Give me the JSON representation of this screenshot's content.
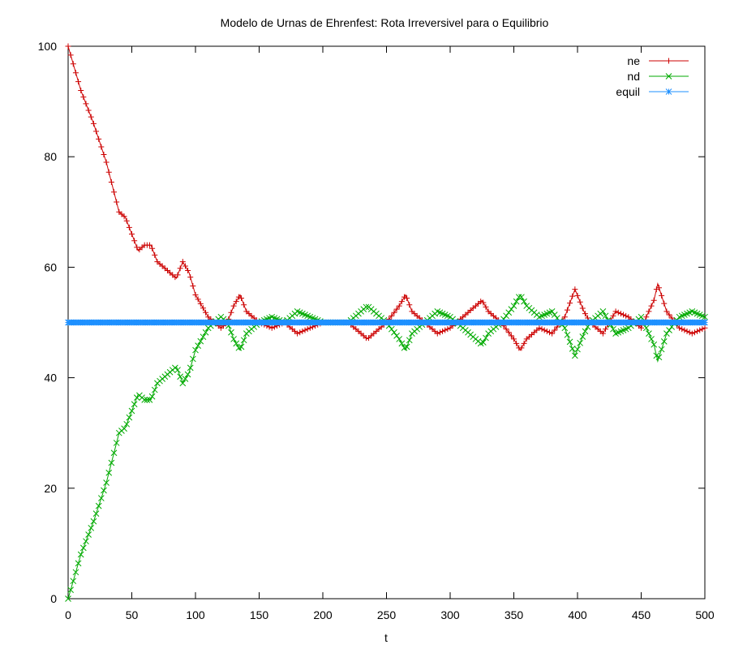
{
  "chart_data": {
    "type": "line",
    "title": "Modelo de Urnas de Ehrenfest: Rota Irreversivel para o Equilibrio",
    "xlabel": "t",
    "ylabel": "",
    "xlim": [
      0,
      500
    ],
    "ylim": [
      0,
      100
    ],
    "xticks": [
      0,
      50,
      100,
      150,
      200,
      250,
      300,
      350,
      400,
      450,
      500
    ],
    "yticks": [
      0,
      20,
      40,
      60,
      80,
      100
    ],
    "grid": false,
    "legend_position": "top-right",
    "series": [
      {
        "name": "ne",
        "color": "#cc0000",
        "marker": "plus",
        "points": [
          [
            0,
            100
          ],
          [
            10,
            92
          ],
          [
            20,
            86
          ],
          [
            30,
            79
          ],
          [
            40,
            70
          ],
          [
            45,
            69
          ],
          [
            50,
            66
          ],
          [
            55,
            63
          ],
          [
            60,
            64
          ],
          [
            65,
            64
          ],
          [
            70,
            61
          ],
          [
            75,
            60
          ],
          [
            80,
            59
          ],
          [
            85,
            58
          ],
          [
            90,
            61
          ],
          [
            95,
            59
          ],
          [
            100,
            55
          ],
          [
            105,
            53
          ],
          [
            110,
            51
          ],
          [
            115,
            50
          ],
          [
            120,
            49
          ],
          [
            125,
            50
          ],
          [
            130,
            53
          ],
          [
            135,
            55
          ],
          [
            140,
            52
          ],
          [
            145,
            51
          ],
          [
            150,
            50
          ],
          [
            160,
            49
          ],
          [
            170,
            50
          ],
          [
            180,
            48
          ],
          [
            190,
            49
          ],
          [
            200,
            50
          ],
          [
            210,
            50
          ],
          [
            220,
            50
          ],
          [
            230,
            48
          ],
          [
            235,
            47
          ],
          [
            240,
            48
          ],
          [
            250,
            50
          ],
          [
            260,
            53
          ],
          [
            265,
            55
          ],
          [
            270,
            52
          ],
          [
            280,
            50
          ],
          [
            290,
            48
          ],
          [
            300,
            49
          ],
          [
            310,
            51
          ],
          [
            320,
            53
          ],
          [
            325,
            54
          ],
          [
            330,
            52
          ],
          [
            340,
            50
          ],
          [
            350,
            47
          ],
          [
            355,
            45
          ],
          [
            360,
            47
          ],
          [
            370,
            49
          ],
          [
            380,
            48
          ],
          [
            390,
            51
          ],
          [
            398,
            56
          ],
          [
            405,
            52
          ],
          [
            410,
            50
          ],
          [
            420,
            48
          ],
          [
            425,
            50
          ],
          [
            430,
            52
          ],
          [
            440,
            51
          ],
          [
            450,
            49
          ],
          [
            460,
            54
          ],
          [
            463,
            57
          ],
          [
            470,
            52
          ],
          [
            480,
            49
          ],
          [
            490,
            48
          ],
          [
            500,
            49
          ]
        ]
      },
      {
        "name": "nd",
        "color": "#00aa00",
        "marker": "cross",
        "points": [
          [
            0,
            0
          ],
          [
            10,
            8
          ],
          [
            20,
            14
          ],
          [
            30,
            21
          ],
          [
            40,
            30
          ],
          [
            45,
            31
          ],
          [
            50,
            34
          ],
          [
            55,
            37
          ],
          [
            60,
            36
          ],
          [
            65,
            36
          ],
          [
            70,
            39
          ],
          [
            75,
            40
          ],
          [
            80,
            41
          ],
          [
            85,
            42
          ],
          [
            90,
            39
          ],
          [
            95,
            41
          ],
          [
            100,
            45
          ],
          [
            105,
            47
          ],
          [
            110,
            49
          ],
          [
            115,
            50
          ],
          [
            120,
            51
          ],
          [
            125,
            50
          ],
          [
            130,
            47
          ],
          [
            135,
            45
          ],
          [
            140,
            48
          ],
          [
            145,
            49
          ],
          [
            150,
            50
          ],
          [
            160,
            51
          ],
          [
            170,
            50
          ],
          [
            180,
            52
          ],
          [
            190,
            51
          ],
          [
            200,
            50
          ],
          [
            210,
            50
          ],
          [
            220,
            50
          ],
          [
            230,
            52
          ],
          [
            235,
            53
          ],
          [
            240,
            52
          ],
          [
            250,
            50
          ],
          [
            260,
            47
          ],
          [
            265,
            45
          ],
          [
            270,
            48
          ],
          [
            280,
            50
          ],
          [
            290,
            52
          ],
          [
            300,
            51
          ],
          [
            310,
            49
          ],
          [
            320,
            47
          ],
          [
            325,
            46
          ],
          [
            330,
            48
          ],
          [
            340,
            50
          ],
          [
            350,
            53
          ],
          [
            355,
            55
          ],
          [
            360,
            53
          ],
          [
            370,
            51
          ],
          [
            380,
            52
          ],
          [
            390,
            49
          ],
          [
            398,
            44
          ],
          [
            405,
            48
          ],
          [
            410,
            50
          ],
          [
            420,
            52
          ],
          [
            425,
            50
          ],
          [
            430,
            48
          ],
          [
            440,
            49
          ],
          [
            450,
            51
          ],
          [
            460,
            46
          ],
          [
            463,
            43
          ],
          [
            470,
            48
          ],
          [
            480,
            51
          ],
          [
            490,
            52
          ],
          [
            500,
            51
          ]
        ]
      },
      {
        "name": "equil",
        "color": "#1e90ff",
        "marker": "star",
        "constant": 50
      }
    ]
  }
}
